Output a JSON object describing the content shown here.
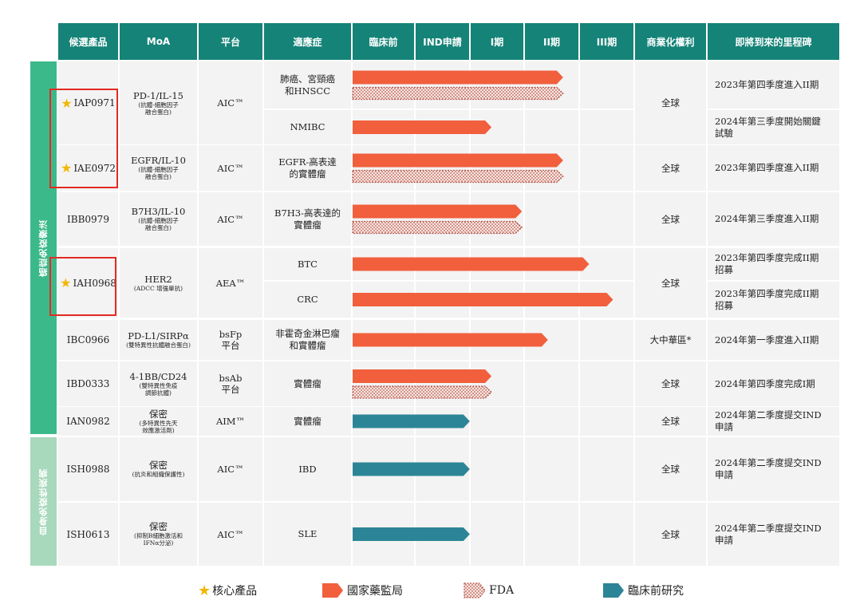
{
  "columns": [
    "候選產品",
    "MoA",
    "平台",
    "適應症",
    "臨床前",
    "IND申請",
    "I期",
    "II期",
    "III期",
    "商業化權利",
    "即將到來的里程碑"
  ],
  "categories": [
    "癌症免疫療法",
    "自身免疫性疾病"
  ],
  "colors": {
    "header": "#158378",
    "nmpa": "#f15f3c",
    "fda": "#b5584f",
    "preclinical": "#2c8596",
    "oncology_band": "#3cb98b",
    "autoimmune_band": "#a8d9bd",
    "highlight": "#e42a22",
    "star": "#f2b705"
  },
  "products": [
    {
      "name": "IAP0971",
      "core": true,
      "moa": "PD-1/IL-15",
      "moa_sub": "(抗體-細胞因子\n融合蛋白)",
      "platform": "AIC™",
      "rights": "全球",
      "indications": [
        {
          "label": "肺癌、宮頸癌\n和HNSCC",
          "nmpa": 0.97,
          "fda": 0.97,
          "milestone": "2023年第四季度進入II期"
        },
        {
          "label": "NMIBC",
          "nmpa": 0.64,
          "milestone": "2024年第三季度開始關鍵\n試驗"
        }
      ]
    },
    {
      "name": "IAE0972",
      "core": true,
      "moa": "EGFR/IL-10",
      "moa_sub": "(抗體-細胞因子\n融合蛋白)",
      "platform": "AIC™",
      "rights": "全球",
      "indications": [
        {
          "label": "EGFR-高表達\n的實體瘤",
          "nmpa": 0.97,
          "fda": 0.97,
          "milestone": "2023年第四季度進入II期"
        }
      ]
    },
    {
      "name": "IBB0979",
      "core": false,
      "moa": "B7H3/IL-10",
      "moa_sub": "(抗體-細胞因子\n融合蛋白)",
      "platform": "AIC™",
      "rights": "全球",
      "indications": [
        {
          "label": "B7H3-高表達的\n實體瘤",
          "nmpa": 0.78,
          "fda": 0.78,
          "milestone": "2024年第三季度進入II期"
        }
      ]
    },
    {
      "name": "IAH0968",
      "core": true,
      "moa": "HER2",
      "moa_sub": "(ADCC 增強單抗)",
      "platform": "AEA™",
      "rights": "全球",
      "indications": [
        {
          "label": "BTC",
          "nmpa": 1.09,
          "milestone": "2023年第四季度完成II期\n招募"
        },
        {
          "label": "CRC",
          "nmpa": 1.2,
          "milestone": "2023年第四季度完成II期\n招募"
        }
      ]
    },
    {
      "name": "IBC0966",
      "core": false,
      "moa": "PD-L1/SIRPα",
      "moa_sub": "(雙特異性抗體融合蛋白)",
      "platform": "bsFp\n平台",
      "rights": "大中華區*",
      "indications": [
        {
          "label": "非霍奇金淋巴瘤\n和實體瘤",
          "nmpa": 0.9,
          "milestone": "2024年第一季度進入II期"
        }
      ]
    },
    {
      "name": "IBD0333",
      "core": false,
      "moa": "4-1BB/CD24",
      "moa_sub": "(雙特異性免疫\n調節抗體)",
      "platform": "bsAb\n平台",
      "rights": "全球",
      "indications": [
        {
          "label": "實體瘤",
          "nmpa": 0.64,
          "fda": 0.64,
          "milestone": "2024年第四季度完成I期"
        }
      ]
    },
    {
      "name": "IAN0982",
      "core": false,
      "moa": "保密",
      "moa_sub": "(多特異性先天\n效應激活劑)",
      "platform": "AIM™",
      "rights": "全球",
      "indications": [
        {
          "label": "實體瘤",
          "pre": 0.54,
          "milestone": "2024年第二季度提交IND\n申請"
        }
      ]
    },
    {
      "name": "ISH0988",
      "core": false,
      "moa": "保密",
      "moa_sub": "(抗炎和組織保護性)",
      "platform": "AIC™",
      "rights": "全球",
      "indications": [
        {
          "label": "IBD",
          "pre": 0.54,
          "milestone": "2024年第二季度提交IND\n申請"
        }
      ]
    },
    {
      "name": "ISH0613",
      "core": false,
      "moa": "保密",
      "moa_sub": "(抑制B細胞激活和\nIFNα分泌)",
      "platform": "AIC™",
      "rights": "全球",
      "indications": [
        {
          "label": "SLE",
          "pre": 0.54,
          "milestone": "2024年第二季度提交IND\n申請"
        }
      ]
    }
  ],
  "legend": [
    {
      "key": "core",
      "label": "核心產品",
      "icon": "star-icon"
    },
    {
      "key": "nmpa",
      "label": "國家藥監局",
      "icon": "arrow-solid"
    },
    {
      "key": "fda",
      "label": "FDA",
      "icon": "arrow-dotted"
    },
    {
      "key": "pre",
      "label": "臨床前研究",
      "icon": "arrow-teal"
    }
  ]
}
